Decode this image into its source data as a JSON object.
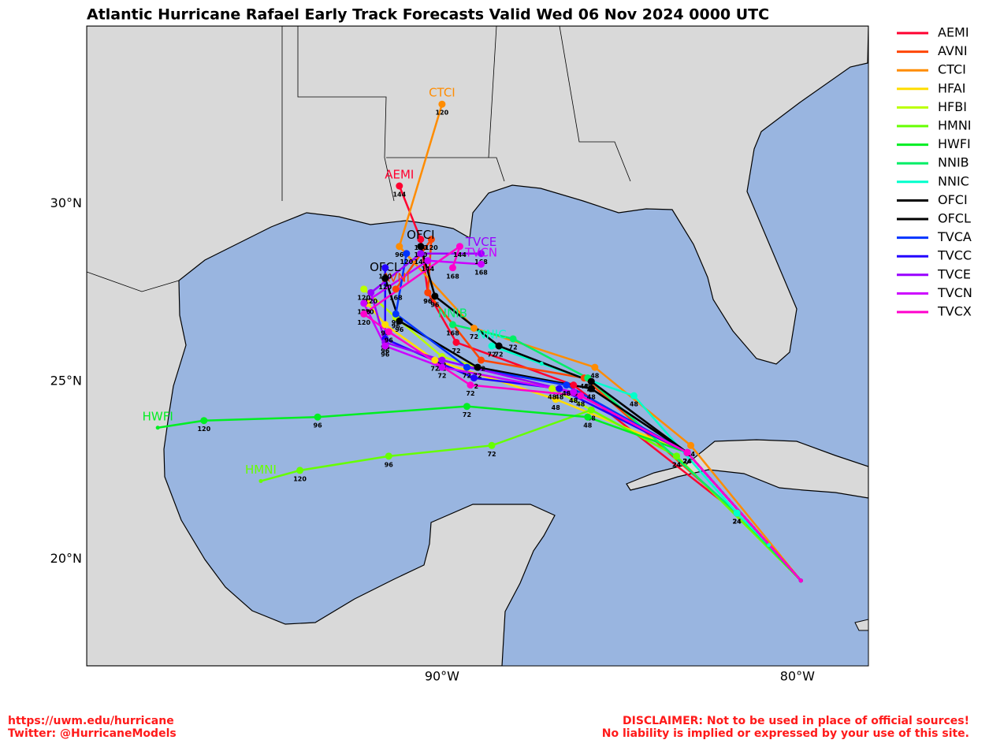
{
  "chart_data": {
    "type": "track",
    "title": "Atlantic Hurricane Rafael Early Track Forecasts Valid Wed 06 Nov 2024 0000 UTC",
    "xlim": [
      -100,
      -78
    ],
    "ylim": [
      17,
      35
    ],
    "xticks": [
      {
        "value": -90,
        "label": "90°W"
      },
      {
        "value": -80,
        "label": "80°W"
      }
    ],
    "yticks": [
      {
        "value": 20,
        "label": "20°N"
      },
      {
        "value": 25,
        "label": "25°N"
      },
      {
        "value": 30,
        "label": "30°N"
      }
    ],
    "series": [
      {
        "name": "AEMI",
        "color": "#ff0030",
        "end_label": true,
        "lon": [
          -79.9,
          -81.7,
          -86.3,
          -89.6,
          -90.4,
          -90.6,
          -91.2
        ],
        "lat": [
          19.4,
          21.3,
          24.9,
          26.1,
          27.5,
          29.0,
          30.5
        ],
        "hours": [
          null,
          24,
          48,
          72,
          96,
          120,
          144
        ]
      },
      {
        "name": "AVNI",
        "color": "#ff4500",
        "end_label": true,
        "lon": [
          -79.9,
          -81.7,
          -86.0,
          -88.9,
          -90.4,
          -90.3,
          -91.3
        ],
        "lat": [
          19.4,
          21.3,
          25.1,
          25.6,
          27.5,
          29.0,
          27.6
        ],
        "hours": [
          null,
          24,
          48,
          72,
          96,
          120,
          168
        ]
      },
      {
        "name": "CTCI",
        "color": "#ff8c00",
        "end_label": true,
        "lon": [
          -79.9,
          -83.0,
          -85.7,
          -89.1,
          -91.2,
          -90.0
        ],
        "lat": [
          19.4,
          23.2,
          25.4,
          26.5,
          28.8,
          32.8
        ],
        "hours": [
          null,
          24,
          48,
          72,
          96,
          120
        ]
      },
      {
        "name": "HFAI",
        "color": "#ffdd00",
        "end_label": false,
        "lon": [
          -79.9,
          -83.1,
          -86.8,
          -90.2,
          -91.6,
          -92.1
        ],
        "lat": [
          19.4,
          23.0,
          24.5,
          25.6,
          26.6,
          27.2
        ],
        "hours": [
          null,
          24,
          48,
          72,
          96,
          120
        ]
      },
      {
        "name": "HFBI",
        "color": "#bbff00",
        "end_label": false,
        "lon": [
          -79.9,
          -83.4,
          -86.9,
          -90.0,
          -91.3,
          -92.2
        ],
        "lat": [
          19.4,
          22.9,
          24.8,
          25.7,
          26.8,
          27.6
        ],
        "hours": [
          null,
          24,
          48,
          72,
          96,
          120
        ]
      },
      {
        "name": "HMNI",
        "color": "#66ff00",
        "end_label": true,
        "lon": [
          -79.9,
          -83.4,
          -85.8,
          -88.6,
          -91.5,
          -94.0,
          -95.1
        ],
        "lat": [
          19.4,
          22.9,
          24.2,
          23.2,
          22.9,
          22.5,
          22.2
        ],
        "hours": [
          null,
          24,
          48,
          72,
          96,
          120,
          null
        ]
      },
      {
        "name": "HWFI",
        "color": "#00ee22",
        "end_label": true,
        "lon": [
          -79.9,
          -83.1,
          -85.9,
          -89.3,
          -93.5,
          -96.7,
          -98.0
        ],
        "lat": [
          19.4,
          23.0,
          24.0,
          24.3,
          24.0,
          23.9,
          23.7
        ],
        "hours": [
          null,
          24,
          48,
          72,
          96,
          120,
          null
        ]
      },
      {
        "name": "NNIB",
        "color": "#00ee66",
        "end_label": true,
        "lon": [
          -79.9,
          -81.7,
          -85.9,
          -88.0,
          -89.7
        ],
        "lat": [
          19.4,
          21.3,
          25.1,
          26.2,
          26.6
        ],
        "hours": [
          null,
          24,
          48,
          72,
          168
        ]
      },
      {
        "name": "NNIC",
        "color": "#00ffcc",
        "end_label": true,
        "lon": [
          -79.9,
          -80.8,
          -81.7,
          -84.6,
          -87.2,
          -88.6
        ],
        "lat": [
          19.4,
          20.4,
          21.3,
          24.6,
          25.5,
          26.0
        ],
        "hours": [
          null,
          null,
          24,
          48,
          null,
          72
        ]
      },
      {
        "name": "OFCI",
        "color": "#000000",
        "end_label": true,
        "lon": [
          -79.9,
          -83.1,
          -85.8,
          -88.4,
          -90.2,
          -90.6
        ],
        "lat": [
          19.4,
          23.0,
          25.0,
          26.0,
          27.4,
          28.8
        ],
        "hours": [
          null,
          24,
          48,
          72,
          96,
          120
        ]
      },
      {
        "name": "OFCL",
        "color": "#000000",
        "end_label": true,
        "lon": [
          -79.9,
          -83.1,
          -85.8,
          -89.0,
          -91.2,
          -91.6
        ],
        "lat": [
          19.4,
          23.0,
          24.8,
          25.4,
          26.7,
          27.9
        ],
        "hours": [
          null,
          24,
          48,
          72,
          96,
          120
        ]
      },
      {
        "name": "TVCA",
        "color": "#0033ff",
        "end_label": false,
        "lon": [
          -79.9,
          -83.1,
          -86.5,
          -89.3,
          -91.3,
          -91.0
        ],
        "lat": [
          19.4,
          23.0,
          24.9,
          25.4,
          26.9,
          28.6
        ],
        "hours": [
          null,
          24,
          48,
          72,
          96,
          120
        ]
      },
      {
        "name": "TVCC",
        "color": "#2200ff",
        "end_label": false,
        "lon": [
          -79.9,
          -83.1,
          -86.7,
          -89.1,
          -91.6,
          -91.6
        ],
        "lat": [
          19.4,
          23.0,
          24.8,
          25.1,
          26.2,
          28.2
        ],
        "hours": [
          null,
          24,
          48,
          72,
          96,
          120
        ]
      },
      {
        "name": "TVCE",
        "color": "#9900ff",
        "end_label": true,
        "lon": [
          -79.9,
          -83.1,
          -86.3,
          -90.0,
          -91.6,
          -92.0,
          -90.6,
          -88.9
        ],
        "lat": [
          19.4,
          23.0,
          24.7,
          25.6,
          26.1,
          27.5,
          28.6,
          28.6
        ],
        "hours": [
          null,
          24,
          48,
          72,
          96,
          120,
          144,
          168
        ]
      },
      {
        "name": "TVCN",
        "color": "#cc00ff",
        "end_label": true,
        "lon": [
          -79.9,
          -83.1,
          -86.3,
          -90.0,
          -91.6,
          -92.2,
          -90.4,
          -88.9
        ],
        "lat": [
          19.4,
          23.0,
          24.7,
          25.4,
          26.0,
          27.2,
          28.4,
          28.3
        ],
        "hours": [
          null,
          24,
          48,
          72,
          96,
          120,
          144,
          168
        ]
      },
      {
        "name": "TVCX",
        "color": "#ff00cc",
        "end_label": false,
        "lon": [
          -79.9,
          -83.1,
          -86.1,
          -89.2,
          -91.5,
          -92.2,
          -89.5,
          -89.7
        ],
        "lat": [
          19.4,
          23.0,
          24.6,
          24.9,
          26.4,
          26.9,
          28.8,
          28.2
        ],
        "hours": [
          null,
          24,
          48,
          72,
          96,
          120,
          144,
          168
        ]
      }
    ]
  },
  "footer": {
    "left": [
      "https://uwm.edu/hurricane",
      "Twitter: @HurricaneModels"
    ],
    "right": [
      "DISCLAIMER: Not to be used in place of official sources!",
      "No liability is implied or expressed by your use of this site."
    ]
  }
}
